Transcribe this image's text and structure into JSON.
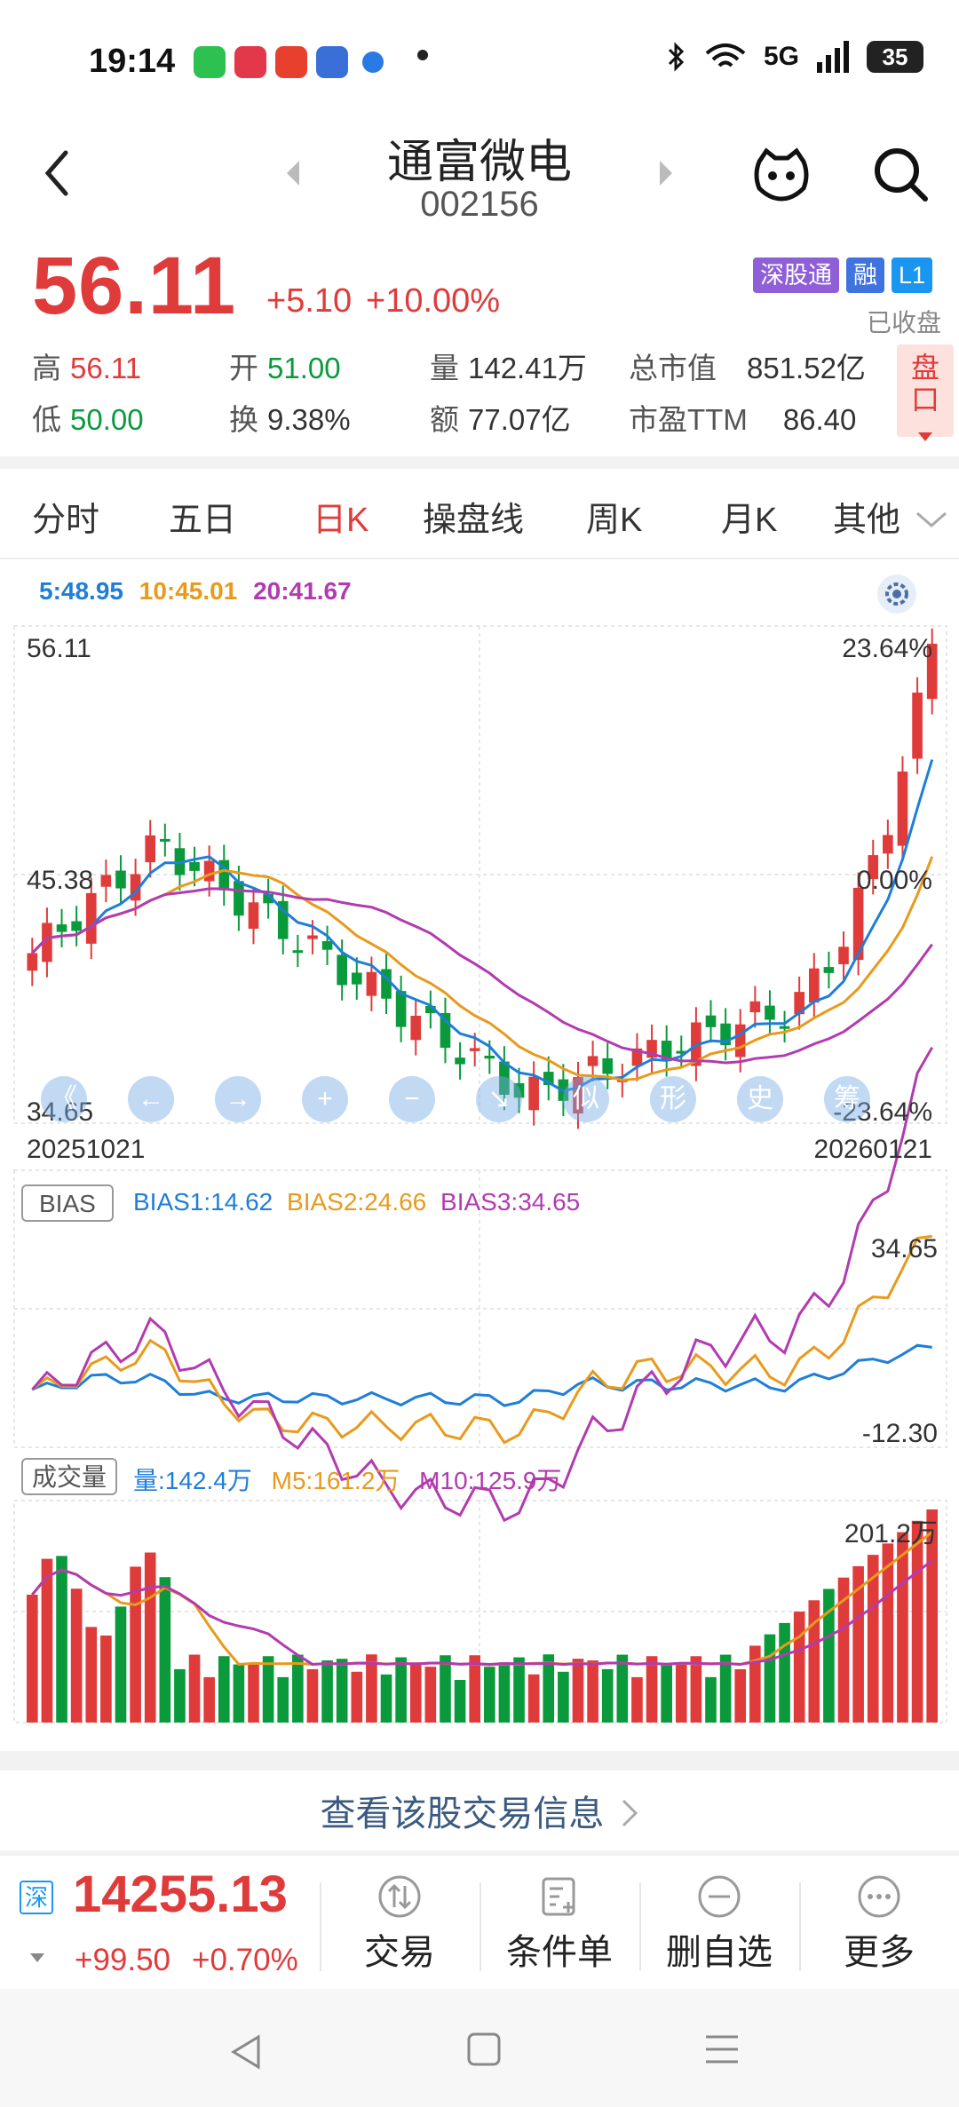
{
  "status_bar": {
    "time": "19:14",
    "network": "5G",
    "battery": "35",
    "icons": [
      "wechat-icon",
      "video-icon",
      "toutiao-icon",
      "chart-app-icon",
      "browser-icon",
      "bluetooth-icon",
      "wifi-icon",
      "signal-icon"
    ]
  },
  "header": {
    "stock_name": "通富微电",
    "stock_code": "002156"
  },
  "quote": {
    "price": "56.11",
    "change": "+5.10",
    "change_pct": "+10.00%",
    "badges": [
      "深股通",
      "融",
      "L1"
    ],
    "market_status": "已收盘",
    "pankou_label": "盘口",
    "stats": {
      "high_label": "高",
      "high": "56.11",
      "open_label": "开",
      "open": "51.00",
      "volume_label": "量",
      "volume": "142.41万",
      "mktcap_label": "总市值",
      "mktcap": "851.52亿",
      "low_label": "低",
      "low": "50.00",
      "turnover_label": "换",
      "turnover": "9.38%",
      "amount_label": "额",
      "amount": "77.07亿",
      "pe_label": "市盈TTM",
      "pe": "86.40"
    }
  },
  "tabs": [
    "分时",
    "五日",
    "日K",
    "操盘线",
    "周K",
    "月K",
    "其他"
  ],
  "active_tab": "日K",
  "chart": {
    "ma_legend": {
      "ma5": "5:48.95",
      "ma10": "10:45.01",
      "ma20": "20:41.67"
    },
    "y_max": "56.11",
    "y_mid": "45.38",
    "y_min": "34.65",
    "pct_max": "23.64%",
    "pct_mid": "0.00%",
    "pct_min": "-23.64%",
    "date_start": "20251021",
    "date_end": "20260121",
    "overlay_buttons": [
      "《",
      "←",
      "→",
      "+",
      "−",
      "↘",
      "似",
      "形",
      "史",
      "筹"
    ]
  },
  "bias": {
    "label": "BIAS",
    "b1": "BIAS1:14.62",
    "b2": "BIAS2:24.66",
    "b3": "BIAS3:34.65",
    "max": "34.65",
    "min": "-12.30"
  },
  "volume": {
    "label": "成交量",
    "vol": "量:142.4万",
    "m5": "M5:161.2万",
    "m10": "M10:125.9万",
    "max": "201.2万"
  },
  "info_link": "查看该股交易信息",
  "bottom_bar": {
    "index_icon": "深",
    "index_value": "14255.13",
    "index_change": "+99.50",
    "index_change_pct": "+0.70%",
    "buttons": [
      "交易",
      "条件单",
      "删自选",
      "更多"
    ]
  },
  "colors": {
    "up": "#e03b3b",
    "down": "#0a9a3c",
    "ma5": "#1f7ed8",
    "ma10": "#e89a1c",
    "ma20": "#b23bb0"
  },
  "chart_data": {
    "type": "candlestick",
    "x_range": [
      "20251021",
      "20260121"
    ],
    "y_range": [
      34.65,
      56.11
    ],
    "ma": {
      "ma5": 48.95,
      "ma10": 45.01,
      "ma20": 41.67
    },
    "bias": {
      "bias1": 14.62,
      "bias2": 24.66,
      "bias3": 34.65,
      "range": [
        -12.3,
        34.65
      ]
    },
    "volume": {
      "last": 142.4,
      "m5": 161.2,
      "m10": 125.9,
      "max": 201.2,
      "unit": "万"
    }
  }
}
